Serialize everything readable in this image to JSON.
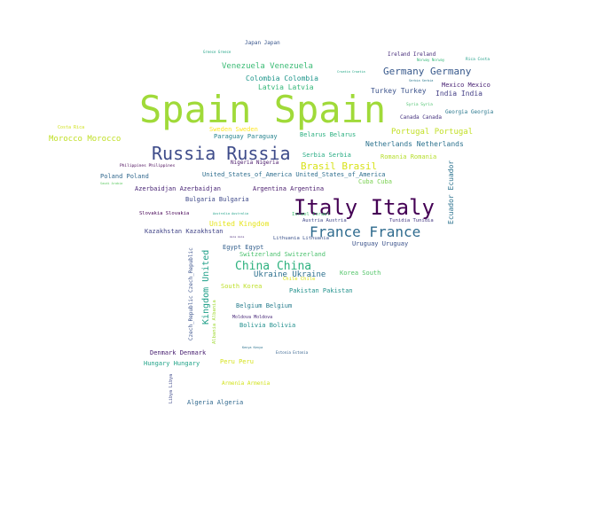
{
  "words": [
    {
      "text": "Spain Spain",
      "color": "#a0da39"
    },
    {
      "text": "Russia Russia",
      "color": "#3e4c8a"
    },
    {
      "text": "Italy Italy",
      "color": "#440154"
    },
    {
      "text": "France France",
      "color": "#2f6b8e"
    },
    {
      "text": "China China",
      "color": "#2cb17e"
    },
    {
      "text": "Germany Germany",
      "color": "#38598c"
    },
    {
      "text": "Brasil Brasil",
      "color": "#d8e219"
    },
    {
      "text": "Portugal Portugal",
      "color": "#c2df23"
    },
    {
      "text": "Morocco Morocco",
      "color": "#c0df25"
    },
    {
      "text": "Venezuela Venezuela",
      "color": "#3bbb75"
    },
    {
      "text": "Colombia Colombia",
      "color": "#1f968b"
    },
    {
      "text": "Latvia Latvia",
      "color": "#35b779"
    },
    {
      "text": "Japan Japan",
      "color": "#39568c"
    },
    {
      "text": "Ireland Ireland",
      "color": "#472c7a"
    },
    {
      "text": "Turkey Turkey",
      "color": "#3b528b"
    },
    {
      "text": "India India",
      "color": "#433e85"
    },
    {
      "text": "Mexico Mexico",
      "color": "#482173"
    },
    {
      "text": "Georgia Georgia",
      "color": "#2a788e"
    },
    {
      "text": "Canada Canada",
      "color": "#46337f"
    },
    {
      "text": "Netherlands Netherlands",
      "color": "#2c728e"
    },
    {
      "text": "Romania Romania",
      "color": "#b5de2b"
    },
    {
      "text": "Belarus Belarus",
      "color": "#29af7f"
    },
    {
      "text": "Serbia Serbia",
      "color": "#25ab82"
    },
    {
      "text": "Sweden Sweden",
      "color": "#fde725"
    },
    {
      "text": "Paraguay Paraguay",
      "color": "#25838e"
    },
    {
      "text": "Nigeria Nigeria",
      "color": "#481769"
    },
    {
      "text": "Poland Poland",
      "color": "#31688e"
    },
    {
      "text": "United_States_of_America United_States_of_America",
      "color": "#2e6e8e"
    },
    {
      "text": "Cuba Cuba",
      "color": "#7ad151"
    },
    {
      "text": "Azerbaidjan Azerbaidjan",
      "color": "#482475"
    },
    {
      "text": "Argentina Argentina",
      "color": "#481a6c"
    },
    {
      "text": "Bulgaria Bulgaria",
      "color": "#3e4989"
    },
    {
      "text": "United Kingdom",
      "color": "#e5e419"
    },
    {
      "text": "Kazakhstan Kazakhstan",
      "color": "#414487"
    },
    {
      "text": "Egypt Egypt",
      "color": "#34608d"
    },
    {
      "text": "Switzerland Switzerland",
      "color": "#4ac16d"
    },
    {
      "text": "Ukraine Ukraine",
      "color": "#2d708e"
    },
    {
      "text": "South Korea",
      "color": "#bddf26"
    },
    {
      "text": "Korea South",
      "color": "#52c569"
    },
    {
      "text": "Pakistan Pakistan",
      "color": "#21918c"
    },
    {
      "text": "Belgium Belgium",
      "color": "#287d8e"
    },
    {
      "text": "Bolivia Bolivia",
      "color": "#218f8d"
    },
    {
      "text": "Denmark Denmark",
      "color": "#481f70"
    },
    {
      "text": "Hungary Hungary",
      "color": "#1fa287"
    },
    {
      "text": "Peru Peru",
      "color": "#d5e21a"
    },
    {
      "text": "Armenia Armenia",
      "color": "#d2e21b"
    },
    {
      "text": "Algeria Algeria",
      "color": "#30688e"
    },
    {
      "text": "Uruguay Uruguay",
      "color": "#3b528b"
    },
    {
      "text": "Slovakia Slovakia",
      "color": "#440154"
    },
    {
      "text": "Tunidia Tunidia",
      "color": "#453882"
    },
    {
      "text": "Austria Austria",
      "color": "#3f4788"
    },
    {
      "text": "Israel Israel",
      "color": "#44bf70"
    },
    {
      "text": "Lithuania Lithuania",
      "color": "#3b528b"
    },
    {
      "text": "Moldova Moldova",
      "color": "#482878"
    },
    {
      "text": "Costa Rica",
      "color": "#d0e11c"
    },
    {
      "text": "Philippines Philippines",
      "color": "#440154"
    },
    {
      "text": "Saudi Arabia",
      "color": "#5ec962"
    },
    {
      "text": "Croatia Croatia",
      "color": "#21a685"
    },
    {
      "text": "Norway Norway",
      "color": "#35b779"
    },
    {
      "text": "Syria Syria",
      "color": "#4ac16d"
    },
    {
      "text": "Serbia Serbia",
      "color": "#2a788e"
    },
    {
      "text": "Chile Chile",
      "color": "#dae319"
    },
    {
      "text": "Kenya Kenya",
      "color": "#2c728e"
    },
    {
      "text": "Estonia Estonia",
      "color": "#34618d"
    },
    {
      "text": "Greece Greece",
      "color": "#20a386"
    },
    {
      "text": "Australia Australia",
      "color": "#1fa088"
    },
    {
      "text": "Asia Asia",
      "color": "#482878"
    },
    {
      "text": "Rica Costa",
      "color": "#1f9e89"
    },
    {
      "text": "Ecuador Ecuador",
      "color": "#2c728e"
    },
    {
      "text": "Kingdom United",
      "color": "#1f9f88"
    },
    {
      "text": "Czech_Republic Czech_Republic",
      "color": "#3b528b"
    },
    {
      "text": "Albania Albania",
      "color": "#a2da37"
    },
    {
      "text": "Libya Libya",
      "color": "#3e4989"
    }
  ]
}
